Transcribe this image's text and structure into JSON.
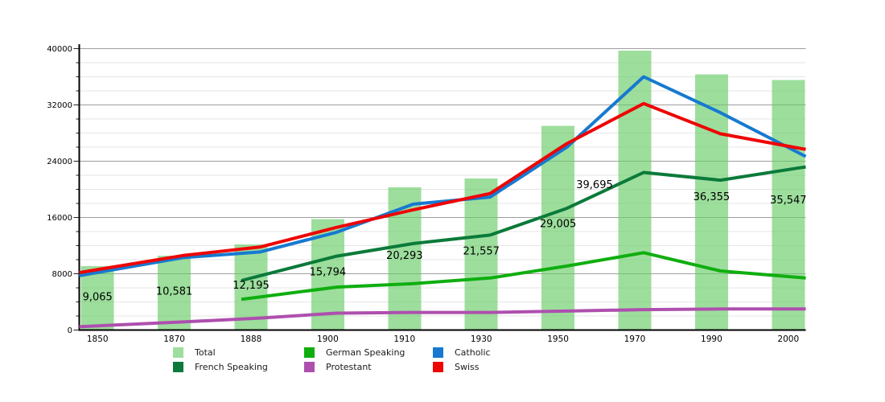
{
  "chart_data": {
    "type": "bar",
    "title": "",
    "xlabel": "",
    "ylabel": "",
    "categories": [
      "1850",
      "1870",
      "1888",
      "1900",
      "1910",
      "1930",
      "1950",
      "1970",
      "1990",
      "2000"
    ],
    "bar_series": {
      "name": "Total",
      "mark": "bar",
      "color": "#9dde9d",
      "values": [
        9065,
        10581,
        12195,
        15794,
        20293,
        21557,
        29005,
        39695,
        36355,
        35547
      ]
    },
    "series": [
      {
        "name": "German Speaking",
        "mark": "line",
        "color": "#0fae0f",
        "values": [
          null,
          null,
          4700,
          6100,
          6600,
          7400,
          9100,
          11000,
          8400,
          7500
        ]
      },
      {
        "name": "French Speaking",
        "mark": "line",
        "color": "#0b7a3a",
        "values": [
          null,
          null,
          7700,
          10500,
          12300,
          13500,
          17300,
          22400,
          21300,
          23000
        ]
      },
      {
        "name": "Protestant",
        "mark": "line",
        "color": "#ae4fae",
        "values": [
          650,
          1150,
          1700,
          2400,
          2500,
          2500,
          2700,
          2900,
          3000,
          3000
        ]
      },
      {
        "name": "Catholic",
        "mark": "line",
        "color": "#1779d0",
        "values": [
          8400,
          10300,
          11100,
          13900,
          17900,
          18900,
          26000,
          36000,
          30900,
          25300
        ]
      },
      {
        "name": "Swiss",
        "mark": "line",
        "color": "#ee0505",
        "values": [
          8800,
          10600,
          11800,
          14600,
          17100,
          19400,
          26500,
          32200,
          27900,
          25900
        ]
      }
    ],
    "ylim": [
      0,
      40000
    ],
    "y_major_step": 8000,
    "y_minor_step": 2000,
    "grid": true,
    "legend_position": "bottom"
  },
  "axes": {
    "y_ticks": [
      "0",
      "8000",
      "16000",
      "24000",
      "32000",
      "40000"
    ],
    "x_ticks": [
      "1850",
      "1870",
      "1888",
      "1900",
      "1910",
      "1930",
      "1950",
      "1970",
      "1990",
      "2000"
    ]
  },
  "bar_value_labels": [
    "9,065",
    "10,581",
    "12,195",
    "15,794",
    "20,293",
    "21,557",
    "29,005",
    "39,695",
    "36,355",
    "35,547"
  ],
  "legend": {
    "items": [
      {
        "label": "Total",
        "color": "#9dde9d"
      },
      {
        "label": "German Speaking",
        "color": "#0fae0f"
      },
      {
        "label": "Catholic",
        "color": "#1779d0"
      },
      {
        "label": "French Speaking",
        "color": "#0b7a3a"
      },
      {
        "label": "Protestant",
        "color": "#ae4fae"
      },
      {
        "label": "Swiss",
        "color": "#ee0505"
      }
    ]
  },
  "colors": {
    "background": "#ffffff",
    "axis": "#000000",
    "grid_major": "#9e9e9e",
    "grid_minor": "#e5e5e5",
    "text": "#000000"
  }
}
